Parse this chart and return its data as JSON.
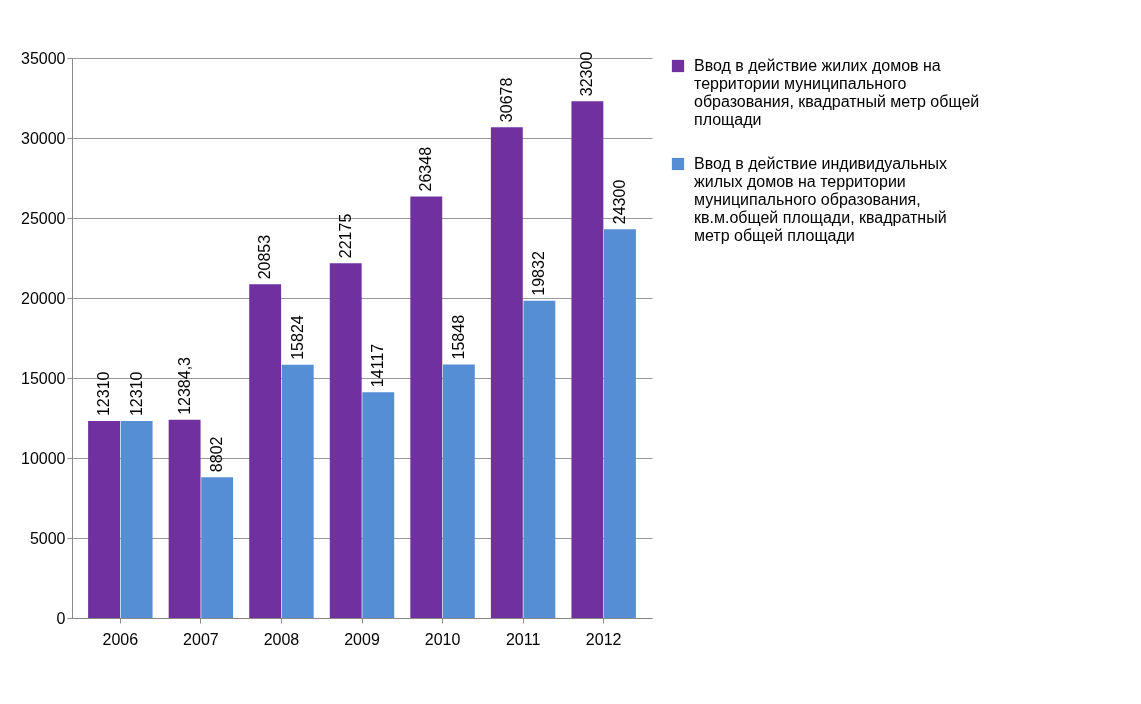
{
  "chart_data": {
    "type": "bar",
    "categories": [
      "2006",
      "2007",
      "2008",
      "2009",
      "2010",
      "2011",
      "2012"
    ],
    "series": [
      {
        "name": "Ввод в действие жилих домов на территории муниципального образования, квадратный метр общей площади",
        "color": "#7030a0",
        "values": [
          12310,
          12384.3,
          20853,
          22175,
          26348,
          30678,
          32300
        ],
        "value_labels": [
          "12310",
          "12384,3",
          "20853",
          "22175",
          "26348",
          "30678",
          "32300"
        ]
      },
      {
        "name": "Ввод в действие индивидуальных жилых домов на территории муниципального образования, кв.м.общей площади, квадратный метр общей площади",
        "color": "#558ed5",
        "values": [
          12310,
          8802,
          15824,
          14117,
          15848,
          19832,
          24300
        ],
        "value_labels": [
          "12310",
          "8802",
          "15824",
          "14117",
          "15848",
          "19832",
          "24300"
        ]
      }
    ],
    "ylim": [
      0,
      35000
    ],
    "yticks": [
      0,
      5000,
      10000,
      15000,
      20000,
      25000,
      30000,
      35000
    ],
    "grid": "y",
    "legend": "right"
  }
}
